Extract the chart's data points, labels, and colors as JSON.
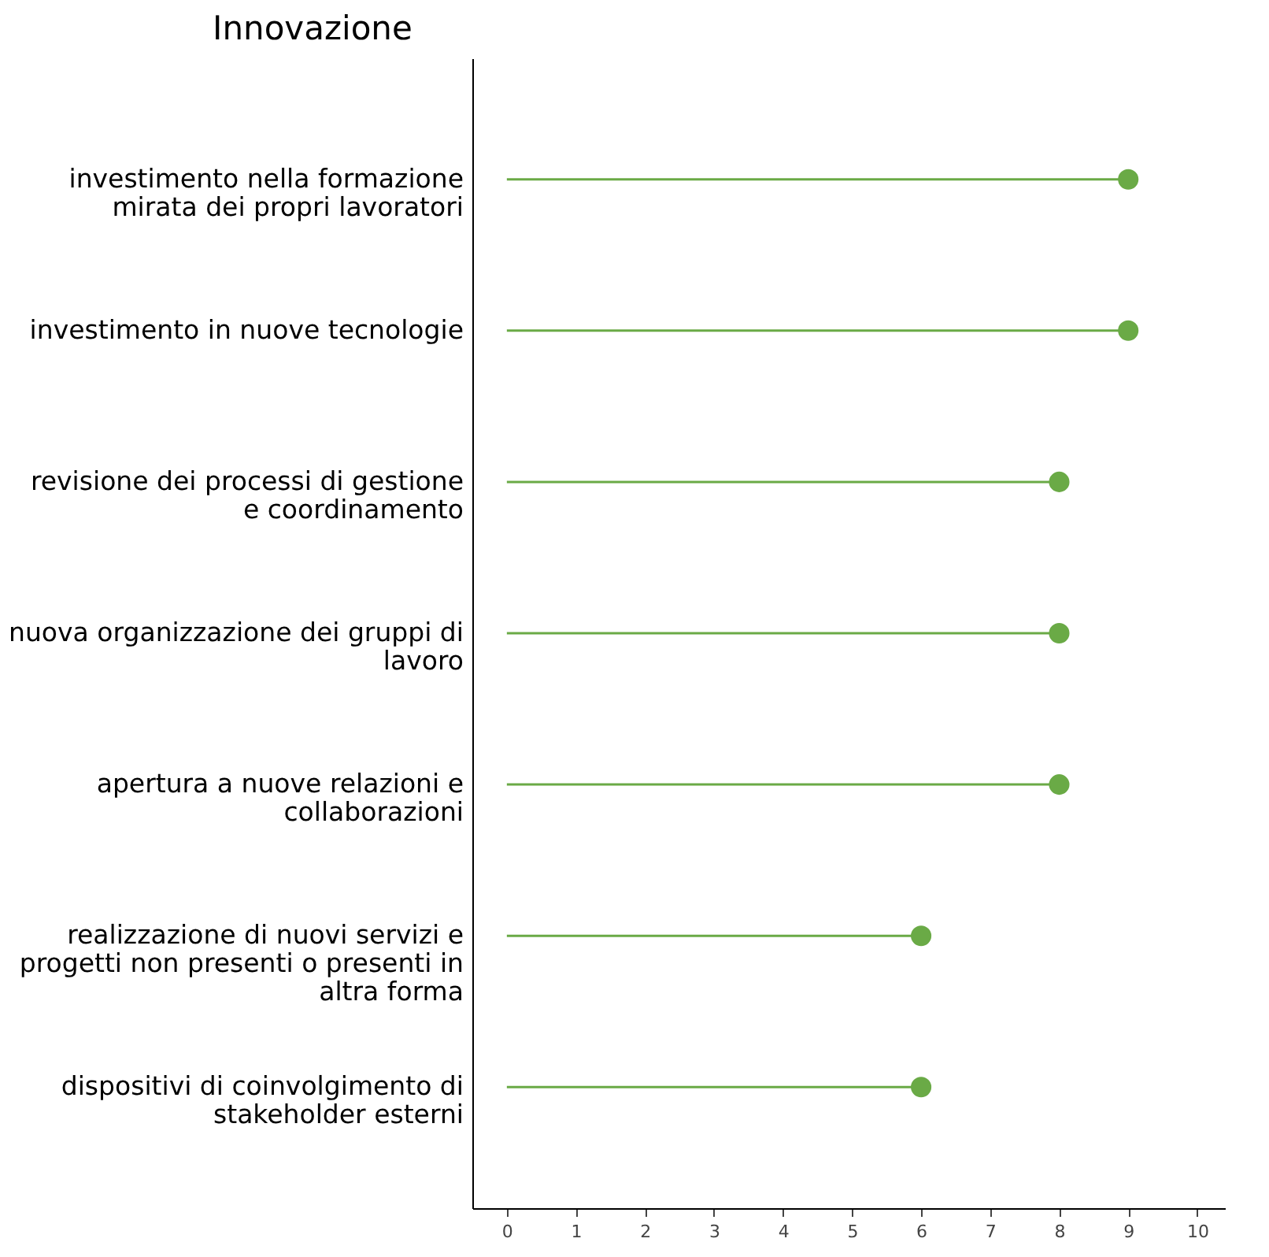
{
  "chart_data": {
    "type": "lollipop",
    "title": "Innovazione",
    "orientation": "horizontal",
    "categories": [
      "investimento nella formazione\nmirata dei propri lavoratori",
      "investimento in nuove tecnologie",
      "revisione dei processi di gestione\ne coordinamento",
      "nuova organizzazione dei gruppi di\nlavoro",
      "apertura a nuove relazioni e\ncollaborazioni",
      "realizzazione di nuovi servizi e\nprogetti non presenti o presenti in\naltra forma",
      "dispositivi di coinvolgimento di\nstakeholder esterni"
    ],
    "values": [
      9,
      9,
      8,
      8,
      8,
      6,
      6
    ],
    "color": "#6aaa46",
    "xlim": [
      -0.5,
      10.4
    ],
    "xticks": [
      0,
      1,
      2,
      3,
      4,
      5,
      6,
      7,
      8,
      9,
      10
    ],
    "grid": false,
    "marker": "circle"
  }
}
